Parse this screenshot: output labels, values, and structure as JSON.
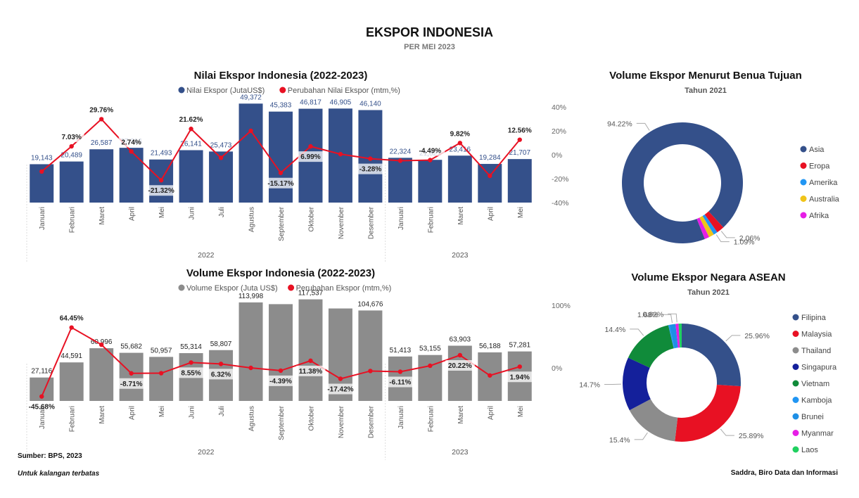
{
  "page": {
    "title": "EKSPOR INDONESIA",
    "subtitle": "PER MEI 2023",
    "source": "Sumber: BPS, 2023",
    "note": "Untuk kalangan terbatas",
    "credit": "Saddra, Biro Data dan Informasi"
  },
  "colors": {
    "blue": "#34508a",
    "red": "#e81123",
    "gray": "#8c8c8c"
  },
  "chart_data": [
    {
      "id": "nilai",
      "type": "bar+line",
      "title": "Nilai Ekspor Indonesia (2022-2023)",
      "legend": [
        "Nilai Ekspor (JutaUS$)",
        "Perubahan Nilai Ekspor (mtm,%)"
      ],
      "categories": [
        "Januari",
        "Februari",
        "Maret",
        "April",
        "Mei",
        "Juni",
        "Juli",
        "Agustus",
        "September",
        "Oktober",
        "November",
        "Desember",
        "Januari",
        "Februari",
        "Maret",
        "April",
        "Mei"
      ],
      "years": [
        {
          "label": "2022",
          "count": 12
        },
        {
          "label": "2023",
          "count": 5
        }
      ],
      "bar_labels": [
        "19,143",
        "20,489",
        "26,587",
        "27,316",
        "21,493",
        "26,141",
        "25,473",
        "49,372",
        "45,383",
        "46,817",
        "46,905",
        "46,140",
        "22,324",
        "21,321",
        "23,416",
        "19,284",
        "21,707"
      ],
      "values": [
        19143,
        20489,
        26587,
        27316,
        21493,
        26141,
        25473,
        49372,
        45383,
        46817,
        46905,
        46140,
        22324,
        21321,
        23416,
        19284,
        21707
      ],
      "pct": [
        -14.0,
        7.03,
        29.76,
        2.74,
        -21.32,
        21.62,
        -2.56,
        20.0,
        -15.17,
        6.99,
        0.5,
        -3.28,
        -5.0,
        -4.49,
        9.82,
        -17.65,
        12.56
      ],
      "pct_labels": [
        "",
        "7.03%",
        "29.76%",
        "2.74%",
        "-21.32%",
        "21.62%",
        "",
        "",
        "-15.17%",
        "6.99%",
        "",
        "-3.28%",
        "",
        "-4.49%",
        "9.82%",
        "",
        "12.56%"
      ],
      "bar_ylim": [
        0,
        60000
      ],
      "pct_ylim": [
        -40,
        40
      ],
      "right_ticks": [
        "40%",
        "20%",
        "0%",
        "-20%",
        "-40%"
      ]
    },
    {
      "id": "volume",
      "type": "bar+line",
      "title": "Volume Ekspor Indonesia (2022-2023)",
      "legend": [
        "Volume Ekspor (Juta US$)",
        "Perubahan Ekspor (mtm,%)"
      ],
      "categories": [
        "Januari",
        "Februari",
        "Maret",
        "April",
        "Mei",
        "Juni",
        "Juli",
        "Agustus",
        "September",
        "Oktober",
        "November",
        "Desember",
        "Januari",
        "Februari",
        "Maret",
        "April",
        "Mei"
      ],
      "years": [
        {
          "label": "2022",
          "count": 12
        },
        {
          "label": "2023",
          "count": 5
        }
      ],
      "bar_labels": [
        "27,116",
        "44,591",
        "60,996",
        "55,682",
        "50,957",
        "55,314",
        "58,807",
        "113,998",
        "",
        "117,537",
        "",
        "104,676",
        "51,413",
        "53,155",
        "63,903",
        "56,188",
        "57,281"
      ],
      "values": [
        27116,
        44591,
        60996,
        55682,
        50957,
        55314,
        58807,
        113998,
        112000,
        117537,
        107000,
        104676,
        51413,
        53155,
        63903,
        56188,
        57281
      ],
      "pct": [
        -45.68,
        64.45,
        37.0,
        -8.71,
        -8.49,
        8.55,
        6.32,
        0.0,
        -4.39,
        11.38,
        -17.42,
        -5.0,
        -6.11,
        3.4,
        20.22,
        -12.1,
        1.94
      ],
      "pct_labels": [
        "-45.68%",
        "64.45%",
        "",
        "-8.71%",
        "",
        "8.55%",
        "6.32%",
        "",
        "-4.39%",
        "11.38%",
        "-17.42%",
        "",
        "-6.11%",
        "",
        "20.22%",
        "",
        "1.94%"
      ],
      "bar_ylim": [
        0,
        140000
      ],
      "pct_ylim": [
        -100,
        100
      ],
      "right_ticks": [
        "100%",
        "0%"
      ]
    },
    {
      "id": "benua",
      "type": "pie",
      "title": "Volume Ekspor Menurut Benua Tujuan",
      "subtitle": "Tahun 2021",
      "labels": [
        "Asia",
        "Eropa",
        "Amerika",
        "Australia",
        "Afrika"
      ],
      "values": [
        94.22,
        2.06,
        1.09,
        1.4,
        1.23
      ],
      "colors": [
        "#34508a",
        "#e81123",
        "#2196f3",
        "#f0c419",
        "#e61ee6"
      ],
      "slice_labels": [
        "94.22%",
        "2.06%",
        "1.09%",
        "",
        ""
      ]
    },
    {
      "id": "asean",
      "type": "pie",
      "title": "Volume Ekspor Negara ASEAN",
      "subtitle": "Tahun 2021",
      "labels": [
        "Filipina",
        "Malaysia",
        "Thailand",
        "Singapura",
        "Vietnam",
        "Kamboja",
        "Brunei",
        "Myanmar",
        "Laos"
      ],
      "values": [
        25.96,
        25.89,
        15.4,
        14.7,
        14.4,
        0.3,
        1.68,
        0.82,
        0.85
      ],
      "colors": [
        "#34508a",
        "#e81123",
        "#8c8c8c",
        "#14209b",
        "#108b3a",
        "#2196f3",
        "#1e90e6",
        "#e61ee6",
        "#20d060"
      ],
      "slice_labels": [
        "25.96%",
        "25.89%",
        "15.4%",
        "14.7%",
        "14.4%",
        "",
        "1.68%",
        "0.82%",
        ""
      ]
    }
  ]
}
